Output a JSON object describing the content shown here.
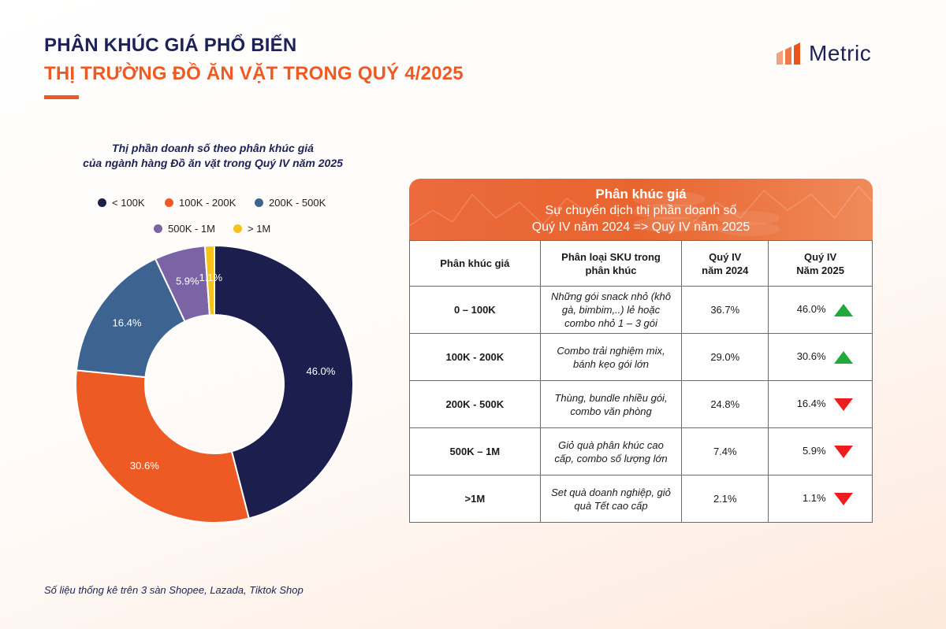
{
  "header": {
    "title_line1": "PHÂN KHÚC GIÁ PHỔ BIẾN",
    "title_line2": "THỊ TRƯỜNG ĐỒ ĂN VẶT TRONG QUÝ 4/2025",
    "logo_text": "Metric",
    "logo_icon": "bar-chart-logo-icon"
  },
  "colors": {
    "navy": "#1c2257",
    "orange": "#ee5a24",
    "blue": "#3d6491",
    "purple": "#7b64a6",
    "yellow": "#f7c21a",
    "arrow_up": "#1faa3b",
    "arrow_down": "#ee1d1d"
  },
  "chart_data": {
    "type": "pie",
    "title": "Thị phần doanh số theo phân khúc giá\ncủa ngành hàng Đồ ăn vặt trong Quý IV năm 2025",
    "title_line1": "Thị phần doanh số theo phân khúc giá",
    "title_line2": "của ngành hàng Đồ ăn vặt trong Quý IV năm 2025",
    "donut": true,
    "legend": "top",
    "categories": [
      "< 100K",
      "100K - 200K",
      "200K - 500K",
      "500K - 1M",
      "> 1M"
    ],
    "values": [
      46.0,
      30.6,
      16.4,
      5.9,
      1.1
    ],
    "labels": [
      "46.0%",
      "30.6%",
      "16.4%",
      "5.9%",
      "1.1%"
    ],
    "colors": [
      "#1c1e4e",
      "#ee5a24",
      "#3d6491",
      "#7b64a6",
      "#f7c21a"
    ]
  },
  "table": {
    "banner_title": "Phân khúc giá",
    "banner_line2": "Sự chuyển dịch thị phần doanh số",
    "banner_line3": "Quý IV năm 2024 => Quý IV năm 2025",
    "headers": [
      "Phân khúc giá",
      "Phân loại SKU trong\nphân khúc",
      "Quý IV\nnăm 2024",
      "Quý IV\nNăm 2025"
    ],
    "rows": [
      {
        "segment": "0 – 100K",
        "description": "Những gói snack nhỏ (khô gà, bimbim,..) lẻ hoặc combo nhỏ 1 – 3 gói",
        "q4_2024": "36.7%",
        "q4_2025": "46.0%",
        "trend": "up"
      },
      {
        "segment": "100K - 200K",
        "description": "Combo trải nghiệm mix, bánh kẹo gói lớn",
        "q4_2024": "29.0%",
        "q4_2025": "30.6%",
        "trend": "up"
      },
      {
        "segment": "200K - 500K",
        "description": "Thùng, bundle nhiều gói, combo văn phòng",
        "q4_2024": "24.8%",
        "q4_2025": "16.4%",
        "trend": "down"
      },
      {
        "segment": "500K – 1M",
        "description": "Giỏ quà phân khúc cao cấp, combo số lượng lớn",
        "q4_2024": "7.4%",
        "q4_2025": "5.9%",
        "trend": "down"
      },
      {
        "segment": ">1M",
        "description": "Set quà doanh nghiệp, giỏ quà Tết cao cấp",
        "q4_2024": "2.1%",
        "q4_2025": "1.1%",
        "trend": "down"
      }
    ]
  },
  "footnote": "Số liệu thống kê trên 3 sàn Shopee, Lazada, Tiktok Shop"
}
